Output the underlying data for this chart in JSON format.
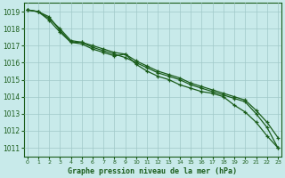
{
  "title": "Graphe pression niveau de la mer (hPa)",
  "bg_color": "#c8eaea",
  "grid_color": "#a0c8c8",
  "line_color": "#1a5c1a",
  "x_data": [
    0,
    1,
    2,
    3,
    4,
    5,
    6,
    7,
    8,
    9,
    10,
    11,
    12,
    13,
    14,
    15,
    16,
    17,
    18,
    19,
    20,
    21,
    22,
    23
  ],
  "line1": [
    1019.1,
    1019.0,
    1018.7,
    1017.9,
    1017.2,
    1017.2,
    1016.9,
    1016.7,
    1016.5,
    1016.3,
    1016.0,
    1015.7,
    1015.4,
    1015.2,
    1015.0,
    1014.7,
    1014.5,
    1014.3,
    1014.1,
    1013.9,
    1013.7,
    1013.0,
    1012.2,
    1011.0
  ],
  "line2": [
    1019.1,
    1019.0,
    1018.6,
    1018.0,
    1017.3,
    1017.2,
    1017.0,
    1016.8,
    1016.6,
    1016.5,
    1016.1,
    1015.8,
    1015.5,
    1015.3,
    1015.1,
    1014.8,
    1014.6,
    1014.4,
    1014.2,
    1014.0,
    1013.8,
    1013.2,
    1012.5,
    1011.6
  ],
  "line3": [
    1019.1,
    1019.0,
    1018.5,
    1017.8,
    1017.2,
    1017.1,
    1016.8,
    1016.6,
    1016.4,
    1016.5,
    1015.9,
    1015.5,
    1015.2,
    1015.0,
    1014.7,
    1014.5,
    1014.3,
    1014.2,
    1014.0,
    1013.5,
    1013.1,
    1012.5,
    1011.7,
    1011.0
  ],
  "ylim": [
    1010.5,
    1019.5
  ],
  "xlim": [
    -0.3,
    23.3
  ],
  "yticks": [
    1011,
    1012,
    1013,
    1014,
    1015,
    1016,
    1017,
    1018,
    1019
  ],
  "xticks": [
    0,
    1,
    2,
    3,
    4,
    5,
    6,
    7,
    8,
    9,
    10,
    11,
    12,
    13,
    14,
    15,
    16,
    17,
    18,
    19,
    20,
    21,
    22,
    23
  ],
  "ytick_fontsize": 5.5,
  "xtick_fontsize": 4.5,
  "xlabel_fontsize": 6.0,
  "linewidth": 0.9,
  "markersize": 3.5
}
